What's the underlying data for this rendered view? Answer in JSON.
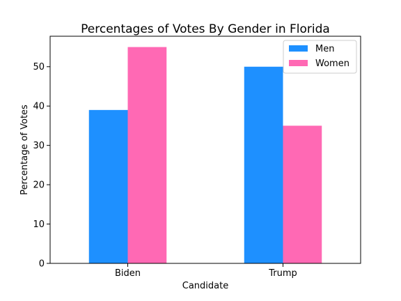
{
  "chart_data": {
    "type": "bar",
    "title": "Percentages of Votes By Gender in Florida",
    "xlabel": "Candidate",
    "ylabel": "Percentage of Votes",
    "categories": [
      "Biden",
      "Trump"
    ],
    "series": [
      {
        "name": "Men",
        "values": [
          39,
          50
        ],
        "color": "#1e90ff"
      },
      {
        "name": "Women",
        "values": [
          55,
          35
        ],
        "color": "#ff69b4"
      }
    ],
    "ylim": [
      0,
      57.75
    ],
    "yticks": [
      0,
      10,
      20,
      30,
      40,
      50
    ],
    "ytick_labels": [
      "0",
      "10",
      "20",
      "30",
      "40",
      "50"
    ],
    "grid": false,
    "legend_position": "top-right"
  }
}
